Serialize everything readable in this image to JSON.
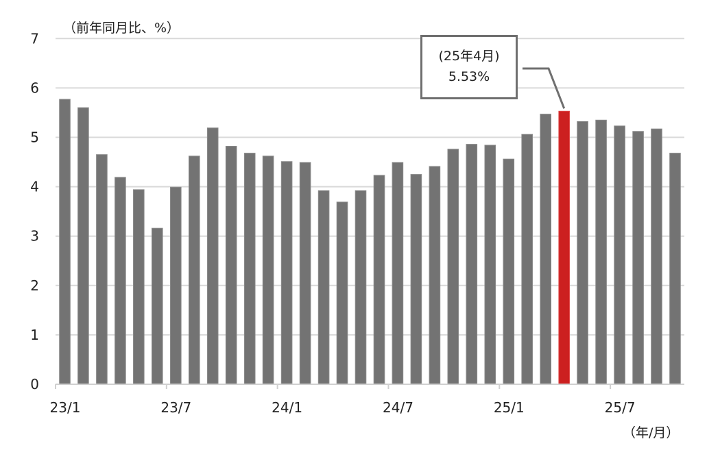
{
  "chart_data": {
    "type": "bar",
    "title": "",
    "ylabel": "（前年同月比、%）",
    "xlabel": "（年/月）",
    "ylim": [
      0,
      7
    ],
    "yticks": [
      0,
      1,
      2,
      3,
      4,
      5,
      6,
      7
    ],
    "grid": true,
    "legend": null,
    "xtick_labels": [
      "23/1",
      "23/7",
      "24/1",
      "24/7",
      "25/1",
      "25/7"
    ],
    "categories": [
      "23/1",
      "23/2",
      "23/3",
      "23/4",
      "23/5",
      "23/6",
      "23/7",
      "23/8",
      "23/9",
      "23/10",
      "23/11",
      "23/12",
      "24/1",
      "24/2",
      "24/3",
      "24/4",
      "24/5",
      "24/6",
      "24/7",
      "24/8",
      "24/9",
      "24/10",
      "24/11",
      "24/12",
      "25/1",
      "25/2",
      "25/3",
      "25/4",
      "25/5",
      "25/6",
      "25/7",
      "25/8",
      "25/9",
      "25/10"
    ],
    "values": [
      5.77,
      5.6,
      4.65,
      4.19,
      3.94,
      3.16,
      3.99,
      4.62,
      5.19,
      4.82,
      4.68,
      4.62,
      4.51,
      4.49,
      3.92,
      3.69,
      3.92,
      4.23,
      4.49,
      4.25,
      4.41,
      4.76,
      4.86,
      4.84,
      4.56,
      5.06,
      5.47,
      5.53,
      5.32,
      5.35,
      5.23,
      5.12,
      5.17,
      4.68
    ],
    "highlight": {
      "category": "25/4",
      "index": 27,
      "value": 5.53
    },
    "annotation": {
      "line1": "(25年4月)",
      "line2": "5.53%",
      "target": "25/4"
    },
    "colors": {
      "bar": "#737373",
      "highlight": "#cc2020",
      "grid": "#d9d9d9",
      "callout_border": "#6f6f6f"
    }
  }
}
